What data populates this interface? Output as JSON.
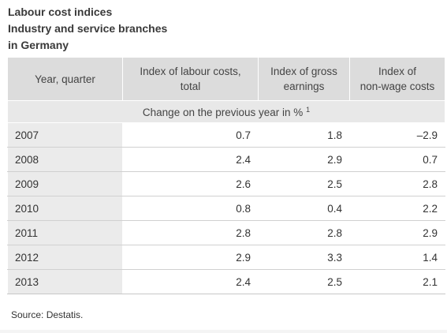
{
  "title_lines": [
    "Labour cost indices",
    "Industry and service branches",
    "in Germany"
  ],
  "chart_data": {
    "type": "table",
    "columns": [
      "Year, quarter",
      "Index of labour costs, total",
      "Index of gross earnings",
      "Index of non-wage costs"
    ],
    "column_lines": [
      [
        "Year, quarter"
      ],
      [
        "Index of labour costs,",
        "total"
      ],
      [
        "Index of gross",
        "earnings"
      ],
      [
        "Index of",
        "non-wage costs"
      ]
    ],
    "subheader": "Change on the previous year in %",
    "subheader_footnote": "1",
    "rows": [
      [
        "2007",
        "0.7",
        "1.8",
        "–2.9"
      ],
      [
        "2008",
        "2.4",
        "2.9",
        "0.7"
      ],
      [
        "2009",
        "2.6",
        "2.5",
        "2.8"
      ],
      [
        "2010",
        "0.8",
        "0.4",
        "2.2"
      ],
      [
        "2011",
        "2.8",
        "2.8",
        "2.9"
      ],
      [
        "2012",
        "2.9",
        "3.3",
        "1.4"
      ],
      [
        "2013",
        "2.4",
        "2.5",
        "2.1"
      ]
    ]
  },
  "source": "Source: Destatis."
}
